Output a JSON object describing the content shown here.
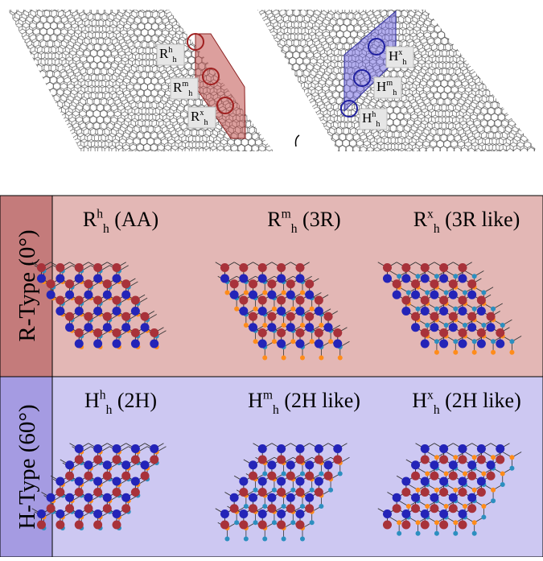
{
  "top": {
    "left_labels": [
      {
        "base": "R",
        "sup": "h",
        "sub": "h"
      },
      {
        "base": "R",
        "sup": "m",
        "sub": "h"
      },
      {
        "base": "R",
        "sup": "x",
        "sub": "h"
      }
    ],
    "right_labels": [
      {
        "base": "H",
        "sup": "x",
        "sub": "h"
      },
      {
        "base": "H",
        "sup": "m",
        "sub": "h"
      },
      {
        "base": "H",
        "sup": "h",
        "sub": "h"
      }
    ]
  },
  "table": {
    "rows": [
      {
        "header": "R-Type (0°)",
        "cells": [
          {
            "base": "R",
            "sup": "h",
            "sub": "h",
            "note": "(AA)"
          },
          {
            "base": "R",
            "sup": "m",
            "sub": "h",
            "note": "(3R)"
          },
          {
            "base": "R",
            "sup": "x",
            "sub": "h",
            "note": "(3R like)"
          }
        ]
      },
      {
        "header": "H-Type (60°)",
        "cells": [
          {
            "base": "H",
            "sup": "h",
            "sub": "h",
            "note": "(2H)"
          },
          {
            "base": "H",
            "sup": "m",
            "sub": "h",
            "note": "(2H like)"
          },
          {
            "base": "H",
            "sup": "x",
            "sub": "h",
            "note": "(2H like)"
          }
        ]
      }
    ]
  }
}
